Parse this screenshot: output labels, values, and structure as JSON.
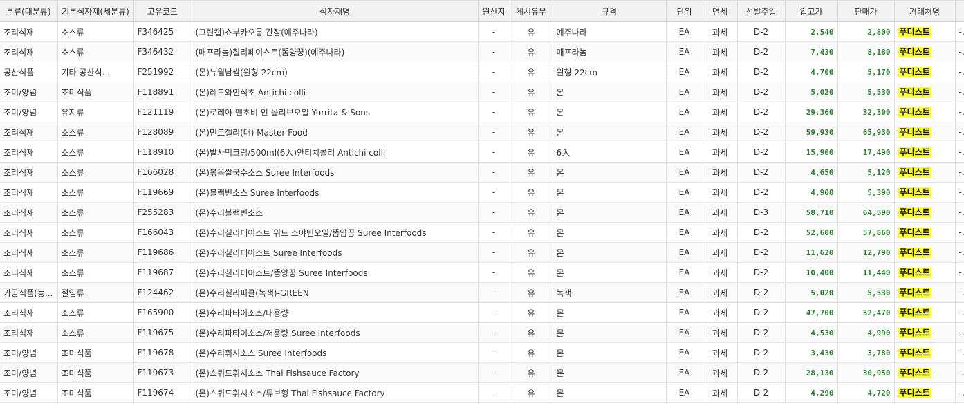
{
  "columns": [
    "분류(대분류)",
    "기본식자재(세분류)",
    "고유코드",
    "식자재명",
    "원산지",
    "게시유무",
    "규격",
    "단위",
    "면세",
    "선발주일",
    "입고가",
    "판매가",
    "거래처명",
    ""
  ],
  "rows": [
    [
      "조리식재",
      "소스류",
      "F346425",
      "(그린캡)쇼부카오통 간장(예주나라)",
      "-",
      "유",
      "예주나라",
      "EA",
      "과세",
      "D-2",
      "2,540",
      "2,800",
      "푸디스트",
      "-"
    ],
    [
      "조리식재",
      "소스류",
      "F346432",
      "(매프라놈)칠리페이스트(똠양꿍)(예주나라)",
      "-",
      "유",
      "매프라놈",
      "EA",
      "과세",
      "D-2",
      "7,430",
      "8,180",
      "푸디스트",
      "-"
    ],
    [
      "공산식품",
      "기타 공산식...",
      "F251992",
      "(몬)뉴월남쌈(원형 22cm)",
      "-",
      "유",
      "원형 22cm",
      "EA",
      "과세",
      "D-2",
      "4,700",
      "5,170",
      "푸디스트",
      "-"
    ],
    [
      "조미/양념",
      "조미식품",
      "F118891",
      "(몬)레드와인식초 Antichi colli",
      "-",
      "유",
      "몬",
      "EA",
      "과세",
      "D-2",
      "5,020",
      "5,530",
      "푸디스트",
      "-"
    ],
    [
      "조미/양념",
      "유지류",
      "F121119",
      "(몬)로레아 엔초비 인 올리브오일 Yurrita & Sons",
      "-",
      "유",
      "몬",
      "EA",
      "과세",
      "D-2",
      "29,360",
      "32,300",
      "푸디스트",
      "-"
    ],
    [
      "조리식재",
      "소스류",
      "F128089",
      "(몬)민트젤리(대) Master Food",
      "-",
      "유",
      "몬",
      "EA",
      "과세",
      "D-2",
      "59,930",
      "65,930",
      "푸디스트",
      "-"
    ],
    [
      "조리식재",
      "소스류",
      "F118910",
      "(몬)발사믹크림/500ml(6入)안티치콜리 Antichi colli",
      "-",
      "유",
      "6入",
      "EA",
      "과세",
      "D-2",
      "15,900",
      "17,490",
      "푸디스트",
      "-"
    ],
    [
      "조리식재",
      "소스류",
      "F166028",
      "(몬)볶음쌀국수소스 Suree Interfoods",
      "-",
      "유",
      "몬",
      "EA",
      "과세",
      "D-2",
      "4,650",
      "5,120",
      "푸디스트",
      "-"
    ],
    [
      "조리식재",
      "소스류",
      "F119669",
      "(몬)블랙빈소스 Suree Interfoods",
      "-",
      "유",
      "몬",
      "EA",
      "과세",
      "D-2",
      "4,900",
      "5,390",
      "푸디스트",
      "-"
    ],
    [
      "조리식재",
      "소스류",
      "F255283",
      "(몬)수리블랙빈소스",
      "-",
      "유",
      "몬",
      "EA",
      "과세",
      "D-3",
      "58,710",
      "64,590",
      "푸디스트",
      "-"
    ],
    [
      "조리식재",
      "소스류",
      "F166043",
      "(몬)수리칠리페이스트 위드 소야빈오일/똠얌꿍 Suree Interfoods",
      "-",
      "유",
      "몬",
      "EA",
      "과세",
      "D-2",
      "52,600",
      "57,860",
      "푸디스트",
      "-"
    ],
    [
      "조리식재",
      "소스류",
      "F119686",
      "(몬)수리칠리페이스트 Suree Interfoods",
      "-",
      "유",
      "몬",
      "EA",
      "과세",
      "D-2",
      "11,620",
      "12,790",
      "푸디스트",
      "-"
    ],
    [
      "조리식재",
      "소스류",
      "F119687",
      "(몬)수리칠리페이스트/똠양꿍 Suree Interfoods",
      "-",
      "유",
      "몬",
      "EA",
      "과세",
      "D-2",
      "10,400",
      "11,440",
      "푸디스트",
      "-"
    ],
    [
      "가공식품(농...",
      "절임류",
      "F124462",
      "(몬)수리칠리피클(녹색)-GREEN",
      "-",
      "유",
      "녹색",
      "EA",
      "과세",
      "D-2",
      "5,020",
      "5,530",
      "푸디스트",
      "-"
    ],
    [
      "조리식재",
      "소스류",
      "F165900",
      "(몬)수리파타이소스/대용량",
      "-",
      "유",
      "몬",
      "EA",
      "과세",
      "D-2",
      "47,700",
      "52,470",
      "푸디스트",
      "-"
    ],
    [
      "조리식재",
      "소스류",
      "F119675",
      "(몬)수리파타이소스/저용량 Suree Interfoods",
      "-",
      "유",
      "몬",
      "EA",
      "과세",
      "D-2",
      "4,530",
      "4,990",
      "푸디스트",
      "-"
    ],
    [
      "조미/양념",
      "조미식품",
      "F119678",
      "(몬)수리휘시소스 Suree Interfoods",
      "-",
      "유",
      "몬",
      "EA",
      "과세",
      "D-2",
      "3,430",
      "3,780",
      "푸디스트",
      "-"
    ],
    [
      "조미/양념",
      "조미식품",
      "F119673",
      "(몬)스퀴드휘시소스 Thai Fishsauce Factory",
      "-",
      "유",
      "몬",
      "EA",
      "과세",
      "D-2",
      "28,130",
      "30,950",
      "푸디스트",
      "-"
    ],
    [
      "조미/양념",
      "조미식품",
      "F119674",
      "(몬)스퀴드휘시소스/튜브형 Thai Fishsauce Factory",
      "-",
      "유",
      "몬",
      "EA",
      "과세",
      "D-2",
      "4,290",
      "4,720",
      "푸디스트",
      "-"
    ]
  ],
  "colors": {
    "price": "#2e7d32",
    "vendor_highlight": "#ffff33",
    "header_bg": "#f2f2f2"
  }
}
